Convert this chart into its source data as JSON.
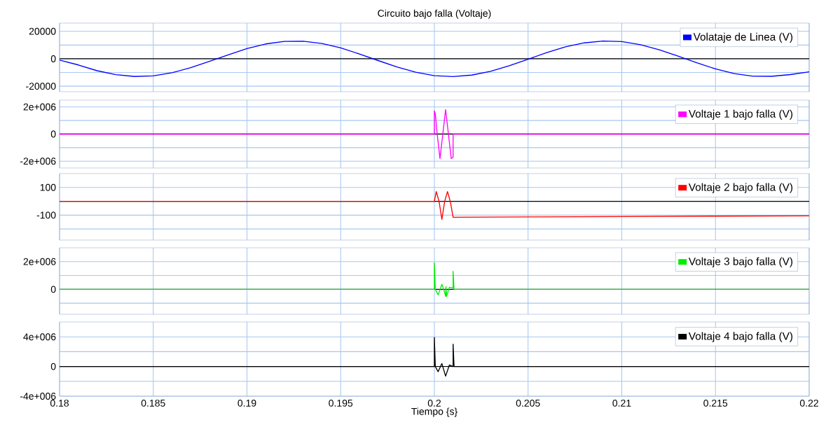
{
  "chart_data": [
    {
      "type": "line",
      "title": "Circuito bajo falla (Voltaje)",
      "xlim": [
        0.18,
        0.22
      ],
      "xticks": [
        0.18,
        0.185,
        0.19,
        0.195,
        0.2,
        0.205,
        0.21,
        0.215,
        0.22
      ],
      "ylim": [
        -24000,
        26000
      ],
      "yticks": [
        20000,
        {
          "value": 10000,
          "label": null
        },
        0,
        {
          "value": -10000,
          "label": null
        },
        -20000
      ],
      "grid": true,
      "legend": "top right",
      "tick_labels": "y",
      "ref_lines": [
        {
          "axis": "y",
          "value": 0,
          "color": "#000000"
        }
      ],
      "series": [
        {
          "name": "Volataje de Linea (V)",
          "color": "#0000ff",
          "x": [
            0.18,
            0.181,
            0.182,
            0.183,
            0.184,
            0.185,
            0.186,
            0.187,
            0.188,
            0.189,
            0.19,
            0.191,
            0.192,
            0.193,
            0.194,
            0.195,
            0.196,
            0.197,
            0.198,
            0.199,
            0.2,
            0.201,
            0.202,
            0.203,
            0.204,
            0.205,
            0.206,
            0.207,
            0.208,
            0.209,
            0.21,
            0.211,
            0.212,
            0.213,
            0.214,
            0.215,
            0.216,
            0.217,
            0.218,
            0.219,
            0.22
          ],
          "values": [
            -1000,
            -4500,
            -8700,
            -11600,
            -12900,
            -12500,
            -10200,
            -6500,
            -1900,
            2900,
            7400,
            10800,
            12700,
            12800,
            11100,
            7900,
            3500,
            -1300,
            -6000,
            -9800,
            -12300,
            -13000,
            -11900,
            -9100,
            -5100,
            -300,
            4500,
            8700,
            11600,
            12900,
            12500,
            10200,
            6500,
            1900,
            -2900,
            -7400,
            -10800,
            -12700,
            -12800,
            -11500,
            -9500
          ]
        }
      ]
    },
    {
      "type": "line",
      "xlim": [
        0.18,
        0.22
      ],
      "xticks": [
        0.18,
        0.185,
        0.19,
        0.195,
        0.2,
        0.205,
        0.21,
        0.215,
        0.22
      ],
      "ylim": [
        -2500000,
        2500000
      ],
      "yticks": [
        {
          "value": 2000000,
          "label": "2e+006"
        },
        {
          "value": 1000000,
          "label": null
        },
        0,
        {
          "value": -1000000,
          "label": null
        },
        {
          "value": -2000000,
          "label": "-2e+006"
        }
      ],
      "grid": true,
      "legend": "top right",
      "tick_labels": "y",
      "ref_lines": [
        {
          "axis": "y",
          "value": 0,
          "color": "#000000"
        }
      ],
      "series": [
        {
          "name": "Voltaje 1 bajo falla  (V)",
          "color": "#ff00ff",
          "x": [
            0.18,
            0.2,
            0.2,
            0.20005,
            0.20015,
            0.2003,
            0.20045,
            0.2006,
            0.20075,
            0.2009,
            0.201,
            0.201,
            0.22
          ],
          "values": [
            0,
            0,
            1700000,
            1500000,
            0,
            -1800000,
            0,
            1800000,
            0,
            -1800000,
            -1700000,
            0,
            0
          ]
        }
      ]
    },
    {
      "type": "line",
      "xlim": [
        0.18,
        0.22
      ],
      "xticks": [
        0.18,
        0.185,
        0.19,
        0.195,
        0.2,
        0.205,
        0.21,
        0.215,
        0.22
      ],
      "ylim": [
        -280,
        200
      ],
      "yticks": [
        100,
        {
          "value": 0,
          "label": null
        },
        -100,
        {
          "value": -200,
          "label": null
        }
      ],
      "grid": true,
      "legend": "top right",
      "tick_labels": "y",
      "ref_lines": [
        {
          "axis": "y",
          "value": 0,
          "color": "#000000"
        }
      ],
      "series": [
        {
          "name": "Voltaje 2 bajo falla (V)",
          "color": "#ff0000",
          "x": [
            0.18,
            0.2,
            0.2001,
            0.20025,
            0.2004,
            0.20055,
            0.2007,
            0.20085,
            0.201,
            0.205,
            0.21,
            0.215,
            0.22
          ],
          "values": [
            0,
            0,
            70,
            0,
            -130,
            0,
            70,
            0,
            -115,
            -113,
            -110,
            -107,
            -105
          ]
        }
      ]
    },
    {
      "type": "line",
      "xlim": [
        0.18,
        0.22
      ],
      "xticks": [
        0.18,
        0.185,
        0.19,
        0.195,
        0.2,
        0.205,
        0.21,
        0.215,
        0.22
      ],
      "ylim": [
        -1800000,
        3000000
      ],
      "yticks": [
        {
          "value": 2000000,
          "label": "2e+006"
        },
        {
          "value": 1000000,
          "label": null
        },
        0,
        {
          "value": -1000000,
          "label": null
        }
      ],
      "grid": true,
      "legend": "top right",
      "tick_labels": "y",
      "ref_lines": [
        {
          "axis": "y",
          "value": 0,
          "color": "#000000"
        }
      ],
      "series": [
        {
          "name": "Voltaje 3 bajo falla (V)",
          "color": "#00ee00",
          "x": [
            0.18,
            0.2,
            0.2,
            0.20005,
            0.2002,
            0.2004,
            0.2005,
            0.2006,
            0.20062,
            0.20065,
            0.2008,
            0.201,
            0.201,
            0.20105,
            0.22
          ],
          "values": [
            0,
            0,
            1900000,
            0,
            -400000,
            360000,
            0,
            -500000,
            200000,
            -500000,
            150000,
            100000,
            1300000,
            0,
            0
          ]
        }
      ]
    },
    {
      "type": "line",
      "xlabel": "Tiempo {s}",
      "xlim": [
        0.18,
        0.22
      ],
      "xticks": [
        0.18,
        0.185,
        0.19,
        0.195,
        0.2,
        0.205,
        0.21,
        0.215,
        0.22
      ],
      "ylim": [
        -4000000,
        6000000
      ],
      "yticks": [
        {
          "value": 4000000,
          "label": "4e+006"
        },
        {
          "value": 2000000,
          "label": null
        },
        0,
        {
          "value": -2000000,
          "label": null
        },
        {
          "value": -4000000,
          "label": "-4e+006"
        }
      ],
      "grid": true,
      "legend": "top right",
      "ref_lines": [
        {
          "axis": "y",
          "value": 0,
          "color": "#000000"
        }
      ],
      "series": [
        {
          "name": "Voltaje 4 bajo falla (V)",
          "color": "#000000",
          "x": [
            0.18,
            0.2,
            0.2,
            0.20005,
            0.2002,
            0.2004,
            0.2006,
            0.2008,
            0.201,
            0.201,
            0.20105,
            0.22
          ],
          "values": [
            0,
            0,
            3900000,
            0,
            -700000,
            400000,
            -1300000,
            200000,
            0,
            3000000,
            0,
            0
          ]
        }
      ]
    }
  ]
}
